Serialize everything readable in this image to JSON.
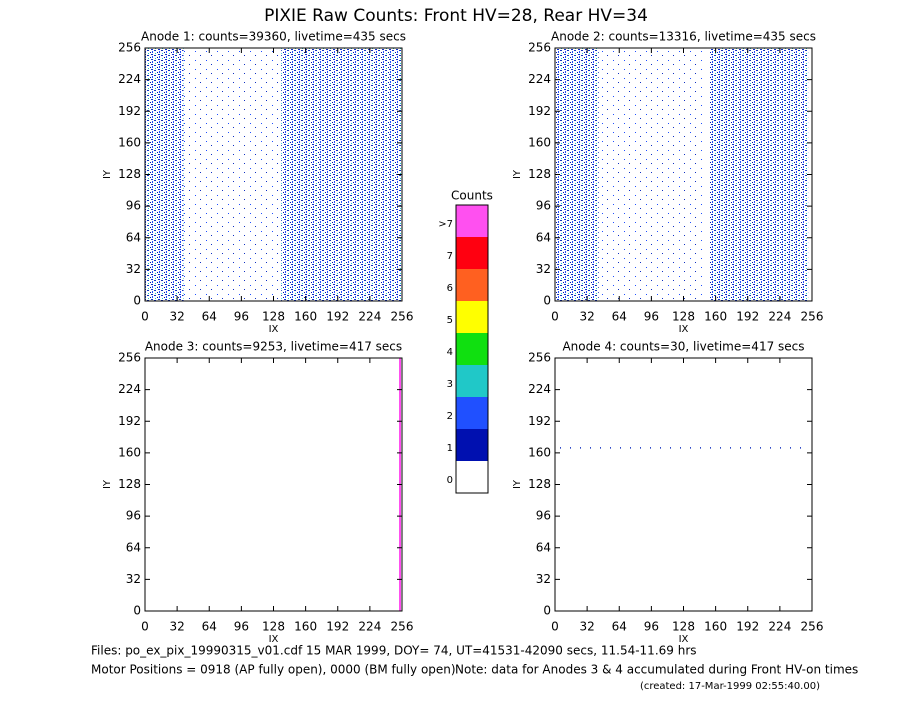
{
  "title": "PIXIE Raw Counts:  Front HV=28, Rear HV=34",
  "chart_data": [
    {
      "type": "heatmap",
      "title": "Anode 1: counts=39360, livetime=435 secs",
      "xlabel": "IX",
      "ylabel": "IY",
      "xlim": [
        0,
        256
      ],
      "xticks": [
        0,
        32,
        64,
        96,
        128,
        160,
        192,
        224,
        256
      ],
      "ylim": [
        0,
        256
      ],
      "yticks": [
        0,
        32,
        64,
        96,
        128,
        160,
        192,
        224,
        256
      ]
    },
    {
      "type": "heatmap",
      "title": "Anode 2: counts=13316, livetime=435 secs",
      "xlabel": "IX",
      "ylabel": "IY",
      "xlim": [
        0,
        256
      ],
      "xticks": [
        0,
        32,
        64,
        96,
        128,
        160,
        192,
        224,
        256
      ],
      "ylim": [
        0,
        256
      ],
      "yticks": [
        0,
        32,
        64,
        96,
        128,
        160,
        192,
        224,
        256
      ]
    },
    {
      "type": "heatmap",
      "title": "Anode 3: counts=9253, livetime=417 secs",
      "xlabel": "IX",
      "ylabel": "IY",
      "xlim": [
        0,
        256
      ],
      "xticks": [
        0,
        32,
        64,
        96,
        128,
        160,
        192,
        224,
        256
      ],
      "ylim": [
        0,
        256
      ],
      "yticks": [
        0,
        32,
        64,
        96,
        128,
        160,
        192,
        224,
        256
      ]
    },
    {
      "type": "heatmap",
      "title": "Anode 4: counts=30, livetime=417 secs",
      "xlabel": "IX",
      "ylabel": "IY",
      "xlim": [
        0,
        256
      ],
      "xticks": [
        0,
        32,
        64,
        96,
        128,
        160,
        192,
        224,
        256
      ],
      "ylim": [
        0,
        256
      ],
      "yticks": [
        0,
        32,
        64,
        96,
        128,
        160,
        192,
        224,
        256
      ]
    }
  ],
  "colorbar": {
    "title": "Counts",
    "categories": [
      "0",
      "1",
      "2",
      "3",
      "4",
      "5",
      "6",
      "7",
      ">7"
    ],
    "colors": [
      "#ffffff",
      "#0010b0",
      "#2050ff",
      "#20c8c8",
      "#10e010",
      "#ffff00",
      "#ff6020",
      "#ff0010",
      "#ff50f0"
    ]
  },
  "footer": {
    "files": "Files: po_ex_pix_19990315_v01.cdf    15 MAR 1999, DOY= 74, UT=41531-42090 secs, 11.54-11.69 hrs",
    "motor": "Motor Positions = 0918 (AP fully open), 0000 (BM fully open)",
    "note": "Note: data for Anodes 3 & 4 accumulated during Front HV-on times",
    "created": "(created: 17-Mar-1999 02:55:40.00)"
  }
}
